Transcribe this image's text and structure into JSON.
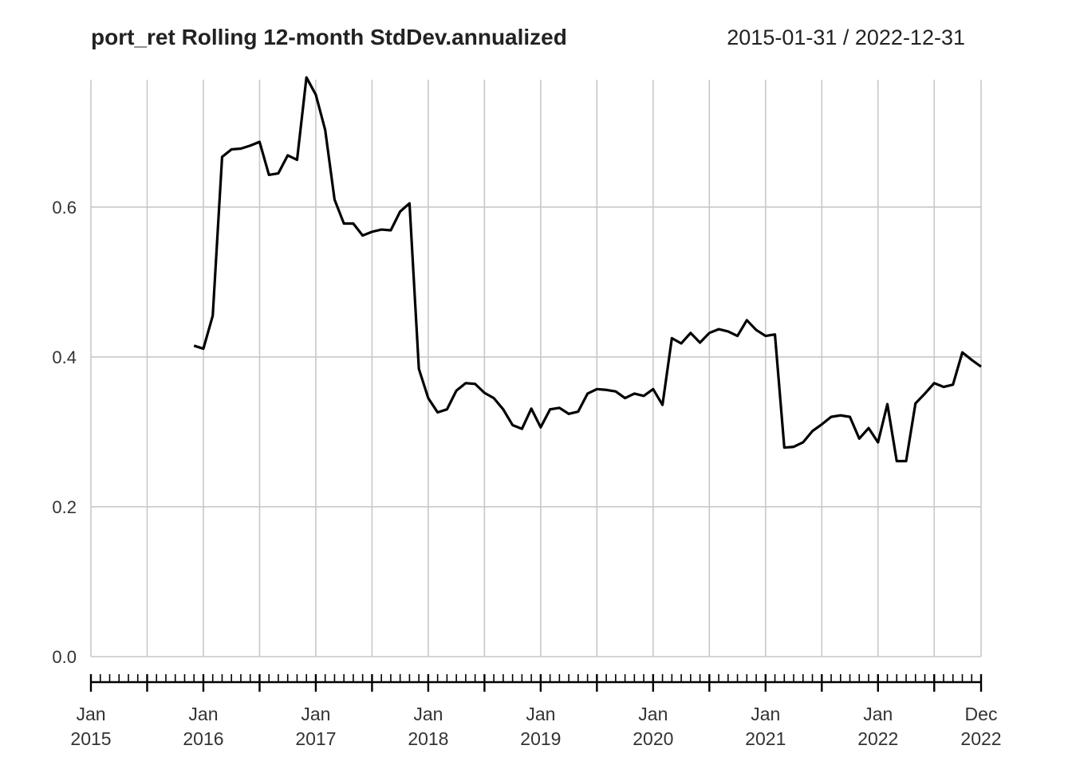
{
  "chart_data": {
    "type": "line",
    "title": "port_ret Rolling 12-month StdDev.annualized",
    "date_range": "2015-01-31 / 2022-12-31",
    "ylim": [
      0,
      0.77
    ],
    "yticks": [
      "0.0",
      "0.2",
      "0.4",
      "0.6"
    ],
    "ytick_values": [
      0,
      0.2,
      0.4,
      0.6
    ],
    "xlim": [
      "2015-01",
      "2022-12"
    ],
    "x_tick_labels": [
      {
        "month": "Jan",
        "year": "2015",
        "date": "2015-01"
      },
      {
        "month": "Jan",
        "year": "2016",
        "date": "2016-01"
      },
      {
        "month": "Jan",
        "year": "2017",
        "date": "2017-01"
      },
      {
        "month": "Jan",
        "year": "2018",
        "date": "2018-01"
      },
      {
        "month": "Jan",
        "year": "2019",
        "date": "2019-01"
      },
      {
        "month": "Jan",
        "year": "2020",
        "date": "2020-01"
      },
      {
        "month": "Jan",
        "year": "2021",
        "date": "2021-01"
      },
      {
        "month": "Jan",
        "year": "2022",
        "date": "2022-01"
      },
      {
        "month": "Dec",
        "year": "2022",
        "date": "2022-12"
      }
    ],
    "x_gridlines": [
      "2015-01",
      "2015-07",
      "2016-01",
      "2016-07",
      "2017-01",
      "2017-07",
      "2018-01",
      "2018-07",
      "2019-01",
      "2019-07",
      "2020-01",
      "2020-07",
      "2021-01",
      "2021-07",
      "2022-01",
      "2022-07",
      "2022-12"
    ],
    "grid": true,
    "line_color": "#000000",
    "series": [
      {
        "x": [
          "2015-12",
          "2016-01",
          "2016-02",
          "2016-03",
          "2016-04",
          "2016-05",
          "2016-06",
          "2016-07",
          "2016-08",
          "2016-09",
          "2016-10",
          "2016-11",
          "2016-12",
          "2017-01",
          "2017-02",
          "2017-03",
          "2017-04",
          "2017-05",
          "2017-06",
          "2017-07",
          "2017-08",
          "2017-09",
          "2017-10",
          "2017-11",
          "2017-12",
          "2018-01",
          "2018-02",
          "2018-03",
          "2018-04",
          "2018-05",
          "2018-06",
          "2018-07",
          "2018-08",
          "2018-09",
          "2018-10",
          "2018-11",
          "2018-12",
          "2019-01",
          "2019-02",
          "2019-03",
          "2019-04",
          "2019-05",
          "2019-06",
          "2019-07",
          "2019-08",
          "2019-09",
          "2019-10",
          "2019-11",
          "2019-12",
          "2020-01",
          "2020-02",
          "2020-03",
          "2020-04",
          "2020-05",
          "2020-06",
          "2020-07",
          "2020-08",
          "2020-09",
          "2020-10",
          "2020-11",
          "2020-12",
          "2021-01",
          "2021-02",
          "2021-03",
          "2021-04",
          "2021-05",
          "2021-06",
          "2021-07",
          "2021-08",
          "2021-09",
          "2021-10",
          "2021-11",
          "2021-12",
          "2022-01",
          "2022-02",
          "2022-03",
          "2022-04",
          "2022-05",
          "2022-06",
          "2022-07",
          "2022-08",
          "2022-09",
          "2022-10",
          "2022-11",
          "2022-12"
        ],
        "values": [
          0.415,
          0.411,
          0.455,
          0.667,
          0.677,
          0.678,
          0.682,
          0.687,
          0.643,
          0.645,
          0.669,
          0.663,
          0.773,
          0.75,
          0.703,
          0.61,
          0.578,
          0.578,
          0.562,
          0.567,
          0.57,
          0.569,
          0.594,
          0.605,
          0.384,
          0.345,
          0.326,
          0.33,
          0.355,
          0.365,
          0.364,
          0.352,
          0.345,
          0.33,
          0.309,
          0.304,
          0.331,
          0.306,
          0.33,
          0.332,
          0.324,
          0.327,
          0.351,
          0.357,
          0.356,
          0.354,
          0.345,
          0.351,
          0.348,
          0.357,
          0.336,
          0.425,
          0.418,
          0.432,
          0.419,
          0.432,
          0.437,
          0.434,
          0.428,
          0.449,
          0.436,
          0.428,
          0.43,
          0.279,
          0.28,
          0.286,
          0.301,
          0.31,
          0.32,
          0.322,
          0.32,
          0.291,
          0.305,
          0.286,
          0.337,
          0.261,
          0.261,
          0.338,
          0.351,
          0.365,
          0.36,
          0.363,
          0.406,
          0.396,
          0.387
        ]
      }
    ]
  }
}
